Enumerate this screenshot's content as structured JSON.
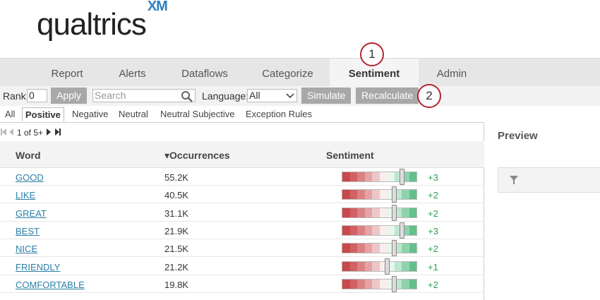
{
  "logo": {
    "text": "qualtrics",
    "badge": "XM"
  },
  "nav": {
    "tabs": [
      "Report",
      "Alerts",
      "Dataflows",
      "Categorize",
      "Sentiment",
      "Admin"
    ]
  },
  "callouts": [
    "1",
    "2"
  ],
  "toolbar": {
    "rank_label": "Rank:",
    "rank_value": "0",
    "apply": "Apply",
    "search_placeholder": "Search",
    "language_label": "Language:",
    "language_value": "All",
    "simulate": "Simulate",
    "recalculate": "Recalculate"
  },
  "filters": [
    "All",
    "Positive",
    "Negative",
    "Neutral",
    "Neutral Subjective",
    "Exception Rules"
  ],
  "pager": "1 of 5+",
  "table": {
    "columns": [
      "Word",
      "Occurrences",
      "Sentiment"
    ],
    "rows": [
      [
        "GOOD",
        "55.2K",
        "+3"
      ],
      [
        "LIKE",
        "40.5K",
        "+2"
      ],
      [
        "GREAT",
        "31.1K",
        "+2"
      ],
      [
        "BEST",
        "21.9K",
        "+3"
      ],
      [
        "NICE",
        "21.5K",
        "+2"
      ],
      [
        "FRIENDLY",
        "21.2K",
        "+1"
      ],
      [
        "COMFORTABLE",
        "19.8K",
        "+2"
      ]
    ]
  },
  "preview": {
    "title": "Preview"
  }
}
